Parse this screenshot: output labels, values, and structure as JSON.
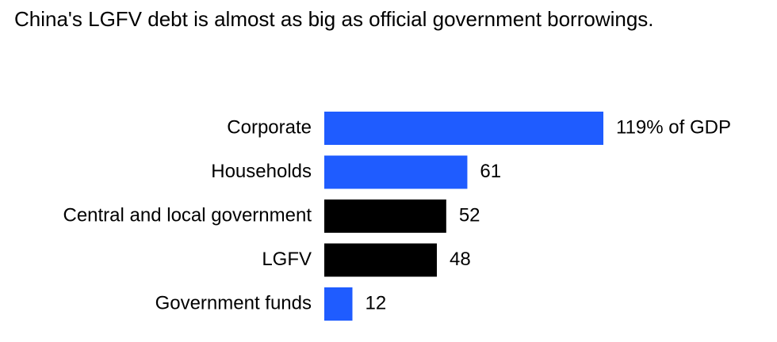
{
  "chart_data": {
    "type": "bar",
    "orientation": "horizontal",
    "title": "China's LGFV debt is almost as big as official government borrowings.",
    "categories": [
      "Corporate",
      "Households",
      "Central and local government",
      "LGFV",
      "Government funds"
    ],
    "values": [
      119,
      61,
      52,
      48,
      12
    ],
    "value_labels": [
      "119% of GDP",
      "61",
      "52",
      "48",
      "12"
    ],
    "colors": [
      "#1f5cff",
      "#1f5cff",
      "#000000",
      "#000000",
      "#1f5cff"
    ]
  }
}
